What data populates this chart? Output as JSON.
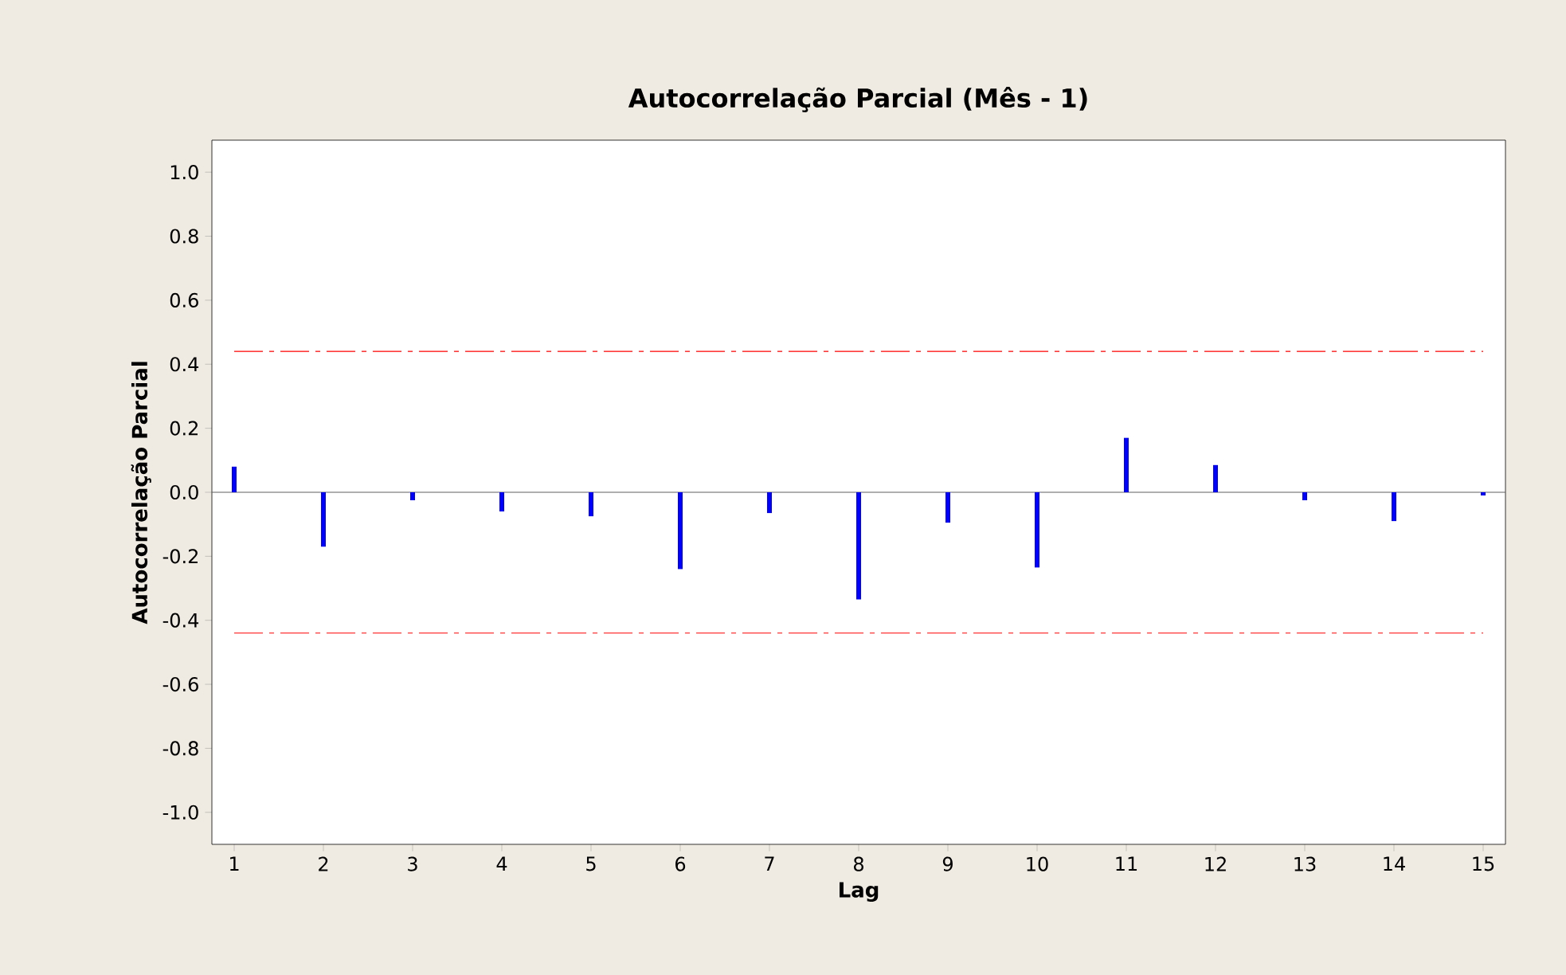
{
  "chart_data": {
    "type": "bar",
    "title": "Autocorrelação Parcial (Mês - 1)",
    "xlabel": "Lag",
    "ylabel": "Autocorrelação Parcial",
    "x": [
      1,
      2,
      3,
      4,
      5,
      6,
      7,
      8,
      9,
      10,
      11,
      12,
      13,
      14,
      15
    ],
    "values": [
      0.08,
      -0.17,
      -0.025,
      -0.06,
      -0.075,
      -0.24,
      -0.065,
      -0.335,
      -0.095,
      -0.235,
      0.17,
      0.085,
      -0.025,
      -0.09,
      -0.01
    ],
    "color": "#0000ff",
    "xlim": [
      0.75,
      15.25
    ],
    "xticks": [
      1,
      2,
      3,
      4,
      5,
      6,
      7,
      8,
      9,
      10,
      11,
      12,
      13,
      14,
      15
    ],
    "ylim": [
      -1.1,
      1.1
    ],
    "yticks": [
      {
        "value": -1.0,
        "label": "-1.0"
      },
      {
        "value": -0.8,
        "label": "-0.8"
      },
      {
        "value": -0.6,
        "label": "-0.6"
      },
      {
        "value": -0.4,
        "label": "-0.4"
      },
      {
        "value": -0.2,
        "label": "-0.2"
      },
      {
        "value": 0,
        "label": "0.0"
      },
      {
        "value": 0.2,
        "label": "0.2"
      },
      {
        "value": 0.4,
        "label": "0.4"
      },
      {
        "value": 0.6,
        "label": "0.6"
      },
      {
        "value": 0.8,
        "label": "0.8"
      },
      {
        "value": 1.0,
        "label": "1.0"
      }
    ],
    "ref_lines": [
      {
        "axis": "y",
        "value": 0,
        "color": "#606060",
        "line_style": "solid"
      },
      {
        "axis": "y",
        "value": 0.44,
        "color": "#ff0000",
        "line_style": "dashdot"
      },
      {
        "axis": "y",
        "value": -0.44,
        "color": "#ff0000",
        "line_style": "dashdot"
      }
    ]
  }
}
